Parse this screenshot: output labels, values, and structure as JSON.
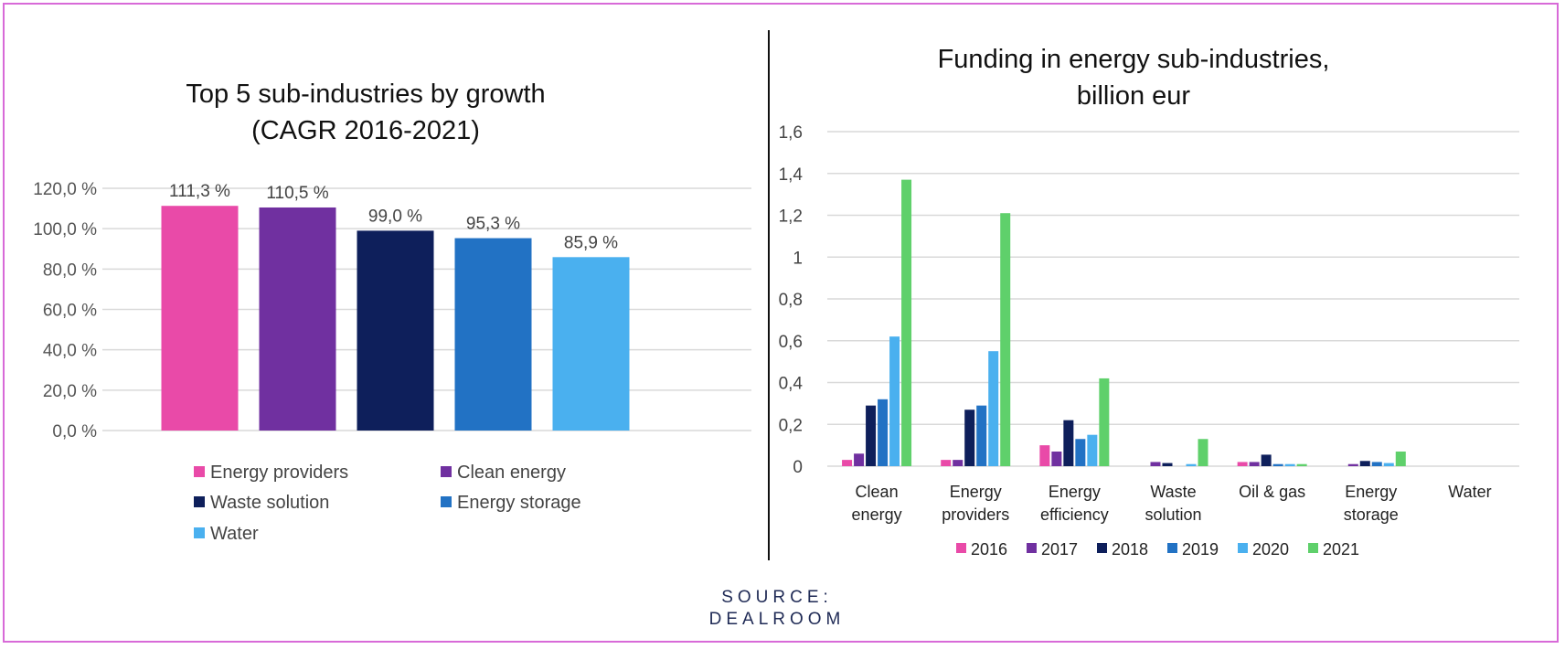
{
  "source": {
    "line1": "SOURCE:",
    "line2": "DEALROOM"
  },
  "chart_data": [
    {
      "type": "bar",
      "title": "Top 5 sub-industries by growth",
      "subtitle": "(CAGR 2016-2021)",
      "categories": [
        "Energy providers",
        "Clean energy",
        "Waste solution",
        "Energy storage",
        "Water"
      ],
      "values": [
        111.3,
        110.5,
        99.0,
        95.3,
        85.9
      ],
      "value_labels": [
        "111,3 %",
        "110,5 %",
        "99,0 %",
        "95,3 %",
        "85,9 %"
      ],
      "colors": [
        "#e94aa8",
        "#7030a0",
        "#0e1f5b",
        "#2272c4",
        "#4ab0ef"
      ],
      "ylim": [
        0,
        120
      ],
      "yticks": [
        0,
        20,
        40,
        60,
        80,
        100,
        120
      ],
      "ytick_labels": [
        "0,0 %",
        "20,0 %",
        "40,0 %",
        "60,0 %",
        "80,0 %",
        "100,0 %",
        "120,0 %"
      ],
      "xlabel": "",
      "ylabel": "",
      "grid": true,
      "legend": "bottom"
    },
    {
      "type": "bar",
      "title": "Funding in energy sub-industries,",
      "subtitle": "billion eur",
      "categories": [
        [
          "Clean",
          "energy"
        ],
        [
          "Energy",
          "providers"
        ],
        [
          "Energy",
          "efficiency"
        ],
        [
          "Waste",
          "solution"
        ],
        [
          "Oil & gas"
        ],
        [
          "Energy",
          "storage"
        ],
        [
          "Water"
        ]
      ],
      "series": [
        {
          "name": "2016",
          "color": "#e94aa8",
          "values": [
            0.03,
            0.03,
            0.1,
            0.0,
            0.02,
            0.0,
            0.0
          ]
        },
        {
          "name": "2017",
          "color": "#7030a0",
          "values": [
            0.06,
            0.03,
            0.07,
            0.02,
            0.02,
            0.01,
            0.0
          ]
        },
        {
          "name": "2018",
          "color": "#0e1f5b",
          "values": [
            0.29,
            0.27,
            0.22,
            0.015,
            0.055,
            0.025,
            0.0
          ]
        },
        {
          "name": "2019",
          "color": "#2272c4",
          "values": [
            0.32,
            0.29,
            0.13,
            0.0,
            0.01,
            0.02,
            0.0
          ]
        },
        {
          "name": "2020",
          "color": "#4ab0ef",
          "values": [
            0.62,
            0.55,
            0.15,
            0.01,
            0.01,
            0.015,
            0.0
          ]
        },
        {
          "name": "2021",
          "color": "#5fd06b",
          "values": [
            1.37,
            1.21,
            0.42,
            0.13,
            0.01,
            0.07,
            0.0
          ]
        }
      ],
      "ylim": [
        0,
        1.6
      ],
      "yticks": [
        0,
        0.2,
        0.4,
        0.6,
        0.8,
        1.0,
        1.2,
        1.4,
        1.6
      ],
      "ytick_labels": [
        "0",
        "0,2",
        "0,4",
        "0,6",
        "0,8",
        "1",
        "1,2",
        "1,4",
        "1,6"
      ],
      "xlabel": "",
      "ylabel": "",
      "grid": true,
      "legend": "bottom"
    }
  ]
}
